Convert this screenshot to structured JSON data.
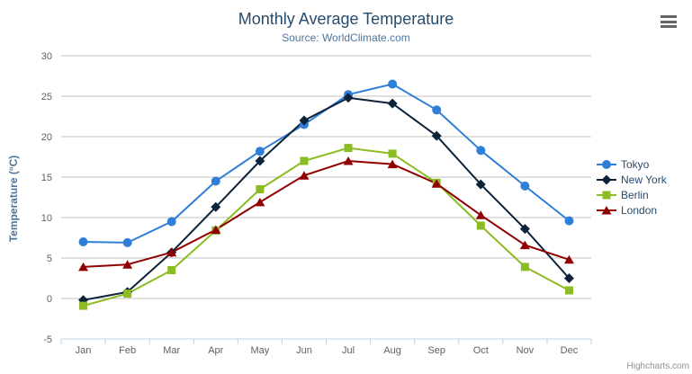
{
  "chart": {
    "credits": "Highcharts.com",
    "menu_icon": "hamburger-icon"
  },
  "chart_data": {
    "type": "line",
    "title": "Monthly Average Temperature",
    "subtitle": "Source: WorldClimate.com",
    "xlabel": "",
    "ylabel": "Temperature (°C)",
    "categories": [
      "Jan",
      "Feb",
      "Mar",
      "Apr",
      "May",
      "Jun",
      "Jul",
      "Aug",
      "Sep",
      "Oct",
      "Nov",
      "Dec"
    ],
    "series": [
      {
        "name": "Tokyo",
        "color": "#2f7ed8",
        "marker": "circle",
        "values": [
          7.0,
          6.9,
          9.5,
          14.5,
          18.2,
          21.5,
          25.2,
          26.5,
          23.3,
          18.3,
          13.9,
          9.6
        ]
      },
      {
        "name": "New York",
        "color": "#0d233a",
        "marker": "diamond",
        "values": [
          -0.2,
          0.8,
          5.7,
          11.3,
          17.0,
          22.0,
          24.8,
          24.1,
          20.1,
          14.1,
          8.6,
          2.5
        ]
      },
      {
        "name": "Berlin",
        "color": "#8bbc21",
        "marker": "square",
        "values": [
          -0.9,
          0.6,
          3.5,
          8.4,
          13.5,
          17.0,
          18.6,
          17.9,
          14.3,
          9.0,
          3.9,
          1.0
        ]
      },
      {
        "name": "London",
        "color": "#910000",
        "marker": "triangle",
        "values": [
          3.9,
          4.2,
          5.7,
          8.5,
          11.9,
          15.2,
          17.0,
          16.6,
          14.2,
          10.3,
          6.6,
          4.8
        ]
      }
    ],
    "ylim": [
      -5,
      30
    ],
    "yticks": [
      -5,
      0,
      5,
      10,
      15,
      20,
      25,
      30
    ],
    "grid": true,
    "legend_position": "right"
  },
  "ui_colors": {
    "title": "#274b6d",
    "subtitle": "#4d759e",
    "axis_label": "#606060",
    "gridline": "#c0c0c0",
    "axis_line": "#c0d0e0",
    "legend_text": "#274b6d",
    "credits_text": "#909090"
  }
}
